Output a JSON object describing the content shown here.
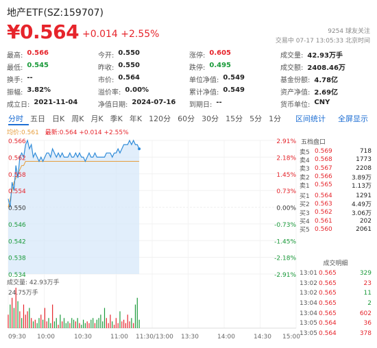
{
  "header": {
    "title": "地产ETF(SZ:159707)",
    "price": "¥0.564",
    "change": "+0.014 +2.55%",
    "followers": "9254 球友关注",
    "timestamp": "交易中 07-17 13:05:33 北京时间"
  },
  "stats": [
    [
      {
        "k": "最高:",
        "v": "0.566",
        "color": "red"
      },
      {
        "k": "今开:",
        "v": "0.550"
      },
      {
        "k": "涨停:",
        "v": "0.605",
        "color": "red"
      },
      {
        "k": "成交量:",
        "v": "42.93万手"
      }
    ],
    [
      {
        "k": "最低:",
        "v": "0.545",
        "color": "green"
      },
      {
        "k": "昨收:",
        "v": "0.550"
      },
      {
        "k": "跌停:",
        "v": "0.495",
        "color": "green"
      },
      {
        "k": "成交额:",
        "v": "2408.46万"
      }
    ],
    [
      {
        "k": "换手:",
        "v": "--"
      },
      {
        "k": "市价:",
        "v": "0.564"
      },
      {
        "k": "单位净值:",
        "v": "0.549"
      },
      {
        "k": "基金份额:",
        "v": "4.78亿"
      }
    ],
    [
      {
        "k": "振幅:",
        "v": "3.82%"
      },
      {
        "k": "溢价率:",
        "v": "0.00%"
      },
      {
        "k": "累计净值:",
        "v": "0.549"
      },
      {
        "k": "资产净值:",
        "v": "2.69亿"
      }
    ],
    [
      {
        "k": "成立日:",
        "v": "2021-11-04"
      },
      {
        "k": "净值日期:",
        "v": "2024-07-16"
      },
      {
        "k": "到期日:",
        "v": "--"
      },
      {
        "k": "货币单位:",
        "v": "CNY"
      }
    ]
  ],
  "tabs": [
    "分时",
    "五日",
    "日K",
    "周K",
    "月K",
    "季K",
    "年K",
    "120分",
    "60分",
    "30分",
    "15分",
    "5分",
    "1分"
  ],
  "tab_links": [
    "区间统计",
    "全屏显示"
  ],
  "legend": {
    "avg": "均价:0.561",
    "latest": "最新:0.564 +0.014 +2.55%"
  },
  "chart_data": {
    "type": "line",
    "y_labels_left": [
      "0.566",
      "0.562",
      "0.558",
      "0.554",
      "0.550",
      "0.546",
      "0.542",
      "0.538",
      "0.534"
    ],
    "y_labels_right": [
      "2.91%",
      "2.18%",
      "1.45%",
      "0.73%",
      "0.00%",
      "-0.73%",
      "-1.45%",
      "-2.18%",
      "-2.91%"
    ],
    "ylim": [
      0.534,
      0.566
    ],
    "x_ticks": [
      "09:30",
      "10:00",
      "10:30",
      "11:00",
      "11:30/13:00",
      "13:30",
      "14:00",
      "14:30",
      "15:00"
    ],
    "series": [
      {
        "name": "最新",
        "values": [
          0.552,
          0.55,
          0.556,
          0.554,
          0.56,
          0.557,
          0.562,
          0.563,
          0.562,
          0.565,
          0.566,
          0.564,
          0.565,
          0.562,
          0.563,
          0.562,
          0.561,
          0.562,
          0.561,
          0.562,
          0.563,
          0.563,
          0.562,
          0.564,
          0.563,
          0.562,
          0.563,
          0.562,
          0.563,
          0.562,
          0.562,
          0.562,
          0.563,
          0.562,
          0.562,
          0.563,
          0.562,
          0.563,
          0.562,
          0.562,
          0.561,
          0.562,
          0.563,
          0.562,
          0.562,
          0.563,
          0.562,
          0.562,
          0.562,
          0.562,
          0.562,
          0.563,
          0.563,
          0.563,
          0.562,
          0.563,
          0.563,
          0.564,
          0.563,
          0.564,
          0.565,
          0.565,
          0.565,
          0.566,
          0.565,
          0.566,
          0.565,
          0.565,
          0.564
        ]
      },
      {
        "name": "均价",
        "values": [
          0.55,
          0.552,
          0.554,
          0.556,
          0.557,
          0.558,
          0.559,
          0.56,
          0.56,
          0.561,
          0.561,
          0.561,
          0.561,
          0.561,
          0.561,
          0.561,
          0.561,
          0.561,
          0.561,
          0.561,
          0.561,
          0.561,
          0.561,
          0.561,
          0.561,
          0.561,
          0.561,
          0.561,
          0.561,
          0.561,
          0.561,
          0.561,
          0.561,
          0.561,
          0.561,
          0.561,
          0.561,
          0.561,
          0.561,
          0.561,
          0.561,
          0.561,
          0.561,
          0.561,
          0.561,
          0.561,
          0.561,
          0.561,
          0.561,
          0.561,
          0.561,
          0.561,
          0.561,
          0.561,
          0.561,
          0.561,
          0.561,
          0.561,
          0.561,
          0.561,
          0.561,
          0.561,
          0.561,
          0.561,
          0.561,
          0.561,
          0.561,
          0.561,
          0.561
        ]
      }
    ],
    "volume_title": "成交量: 42.93万手",
    "volume_axis_label": "24.75万手",
    "volume": [
      8,
      14,
      18,
      12,
      24,
      16,
      10,
      6,
      14,
      8,
      10,
      12,
      6,
      4,
      5,
      3,
      6,
      8,
      5,
      12,
      4,
      6,
      3,
      14,
      4,
      6,
      2,
      8,
      4,
      6,
      3,
      4,
      3,
      6,
      5,
      4,
      6,
      3,
      2,
      5,
      3,
      4,
      3,
      5,
      6,
      3,
      5,
      6,
      8,
      4,
      12,
      6,
      3,
      8,
      4,
      2,
      6,
      3,
      10,
      4,
      5,
      3,
      8,
      4,
      6,
      3,
      14,
      18,
      5
    ],
    "volume_colors": [
      "up",
      "down",
      "up",
      "down",
      "up",
      "down",
      "up",
      "down",
      "up",
      "up",
      "up",
      "down",
      "up",
      "down",
      "up",
      "down",
      "down",
      "up",
      "down",
      "up",
      "up",
      "down",
      "down",
      "up",
      "down",
      "down",
      "up",
      "down",
      "up",
      "down",
      "down",
      "down",
      "up",
      "down",
      "down",
      "up",
      "down",
      "up",
      "down",
      "down",
      "down",
      "up",
      "up",
      "down",
      "down",
      "up",
      "down",
      "down",
      "down",
      "down",
      "down",
      "up",
      "up",
      "up",
      "down",
      "up",
      "up",
      "up",
      "down",
      "up",
      "up",
      "up",
      "up",
      "up",
      "down",
      "up",
      "down",
      "down",
      "down"
    ],
    "colors": {
      "price": "#2f8bd8",
      "avg": "#e69c3a",
      "up": "#e6242b",
      "down": "#1a9a3a",
      "fill": "#d7e8fa"
    }
  },
  "order_book": {
    "title": "五档盘口",
    "asks": [
      {
        "label": "卖5",
        "price": "0.569",
        "vol": "718"
      },
      {
        "label": "卖4",
        "price": "0.568",
        "vol": "1773"
      },
      {
        "label": "卖3",
        "price": "0.567",
        "vol": "2208"
      },
      {
        "label": "卖2",
        "price": "0.566",
        "vol": "3.89万"
      },
      {
        "label": "卖1",
        "price": "0.565",
        "vol": "1.13万"
      }
    ],
    "bids": [
      {
        "label": "买1",
        "price": "0.564",
        "vol": "1291"
      },
      {
        "label": "买2",
        "price": "0.563",
        "vol": "4.49万"
      },
      {
        "label": "买3",
        "price": "0.562",
        "vol": "3.06万"
      },
      {
        "label": "买4",
        "price": "0.561",
        "vol": "202"
      },
      {
        "label": "买5",
        "price": "0.560",
        "vol": "2061"
      }
    ]
  },
  "trades": {
    "title": "成交明细",
    "rows": [
      {
        "t": "13:01",
        "p": "0.565",
        "q": "329",
        "color": "green"
      },
      {
        "t": "13:02",
        "p": "0.565",
        "q": "23",
        "color": "red"
      },
      {
        "t": "13:02",
        "p": "0.565",
        "q": "11",
        "color": "green"
      },
      {
        "t": "13:04",
        "p": "0.565",
        "q": "2",
        "color": "green"
      },
      {
        "t": "13:04",
        "p": "0.565",
        "q": "602",
        "color": "red"
      },
      {
        "t": "13:05",
        "p": "0.564",
        "q": "36",
        "color": "red"
      },
      {
        "t": "13:05",
        "p": "0.564",
        "q": "378",
        "color": "red"
      }
    ]
  }
}
